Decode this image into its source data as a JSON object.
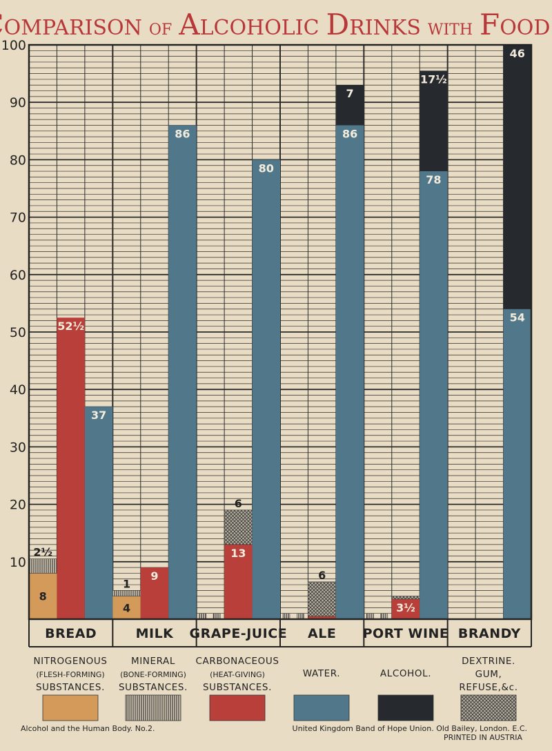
{
  "title": {
    "w1a": "C",
    "w1b": "OMPARISON",
    "w2": "OF",
    "w3a": "A",
    "w3b": "LCOHOLIC",
    "w4a": "D",
    "w4b": "RINKS",
    "w5": "WITH",
    "w6a": "F",
    "w6b": "OODS."
  },
  "footer": {
    "left": "Alcohol and the Human Body. No.2.",
    "right": "United Kingdom Band of Hope Union.  Old Bailey, London. E.C.",
    "small": "PRINTED IN AUSTRIA"
  },
  "colors": {
    "nitrogenous": "#d49a5a",
    "mineral": "#8a8a8a",
    "carbonaceous": "#b9403a",
    "water": "#50788a",
    "alcohol": "#262a2e",
    "dextrine": "#8c8c8c",
    "paper": "#e9dcc4",
    "line": "#2a2a2a"
  },
  "legend": [
    {
      "key": "nitrogenous",
      "lines": [
        "NITROGENOUS",
        "(FLESH-FORMING)",
        "SUBSTANCES."
      ]
    },
    {
      "key": "mineral",
      "lines": [
        "MINERAL",
        "(BONE-FORMING)",
        "SUBSTANCES."
      ]
    },
    {
      "key": "carbonaceous",
      "lines": [
        "CARBONACEOUS",
        "(HEAT-GIVING)",
        "SUBSTANCES."
      ]
    },
    {
      "key": "water",
      "lines": [
        "WATER."
      ]
    },
    {
      "key": "alcohol",
      "lines": [
        "ALCOHOL."
      ]
    },
    {
      "key": "dextrine",
      "lines": [
        "DEXTRINE.",
        "GUM,",
        "REFUSE,&c."
      ]
    }
  ],
  "chart_data": {
    "type": "bar",
    "ylim": [
      0,
      100
    ],
    "yticks": [
      "10",
      "20",
      "30",
      "40",
      "50",
      "60",
      "70",
      "80",
      "90",
      "100"
    ],
    "grid": true,
    "categories": [
      "BREAD",
      "MILK",
      "GRAPE-JUICE",
      "ALE",
      "PORT WINE",
      "BRANDY"
    ],
    "bars": [
      {
        "cat": 0,
        "slot": 0,
        "segments": [
          {
            "c": "nitrogenous",
            "v": 8,
            "label": "8"
          },
          {
            "c": "mineral",
            "v": 2.5,
            "label": "2½"
          }
        ]
      },
      {
        "cat": 0,
        "slot": 1,
        "segments": [
          {
            "c": "carbonaceous",
            "v": 52.5,
            "label": "52½"
          }
        ]
      },
      {
        "cat": 0,
        "slot": 2,
        "segments": [
          {
            "c": "water",
            "v": 37,
            "label": "37"
          }
        ]
      },
      {
        "cat": 1,
        "slot": 0,
        "segments": [
          {
            "c": "nitrogenous",
            "v": 4,
            "label": "4"
          },
          {
            "c": "mineral",
            "v": 1,
            "label": "1"
          }
        ]
      },
      {
        "cat": 1,
        "slot": 1,
        "segments": [
          {
            "c": "carbonaceous",
            "v": 9,
            "label": "9"
          }
        ]
      },
      {
        "cat": 1,
        "slot": 2,
        "segments": [
          {
            "c": "water",
            "v": 86,
            "label": "86"
          }
        ]
      },
      {
        "cat": 2,
        "slot": 0,
        "segments": [
          {
            "c": "mineral",
            "v": 1
          }
        ]
      },
      {
        "cat": 2,
        "slot": 1,
        "segments": [
          {
            "c": "carbonaceous",
            "v": 13,
            "label": "13"
          },
          {
            "c": "dextrine",
            "v": 6,
            "label": "6"
          }
        ]
      },
      {
        "cat": 2,
        "slot": 2,
        "segments": [
          {
            "c": "water",
            "v": 80,
            "label": "80"
          }
        ]
      },
      {
        "cat": 3,
        "slot": 0,
        "segments": [
          {
            "c": "mineral",
            "v": 1
          }
        ]
      },
      {
        "cat": 3,
        "slot": 1,
        "segments": [
          {
            "c": "carbonaceous",
            "v": 0.5
          },
          {
            "c": "dextrine",
            "v": 6,
            "label": "6"
          }
        ]
      },
      {
        "cat": 3,
        "slot": 2,
        "segments": [
          {
            "c": "water",
            "v": 86,
            "label": "86"
          },
          {
            "c": "alcohol",
            "v": 7,
            "label": "7"
          }
        ]
      },
      {
        "cat": 4,
        "slot": 0,
        "segments": [
          {
            "c": "mineral",
            "v": 1
          }
        ]
      },
      {
        "cat": 4,
        "slot": 1,
        "segments": [
          {
            "c": "carbonaceous",
            "v": 3.5,
            "label": "3½"
          },
          {
            "c": "dextrine",
            "v": 0.5
          }
        ]
      },
      {
        "cat": 4,
        "slot": 2,
        "segments": [
          {
            "c": "water",
            "v": 78,
            "label": "78"
          },
          {
            "c": "alcohol",
            "v": 17.5,
            "label": "17½"
          }
        ]
      },
      {
        "cat": 5,
        "slot": 2,
        "segments": [
          {
            "c": "water",
            "v": 54,
            "label": "54"
          },
          {
            "c": "alcohol",
            "v": 46,
            "label": "46"
          }
        ]
      }
    ]
  }
}
